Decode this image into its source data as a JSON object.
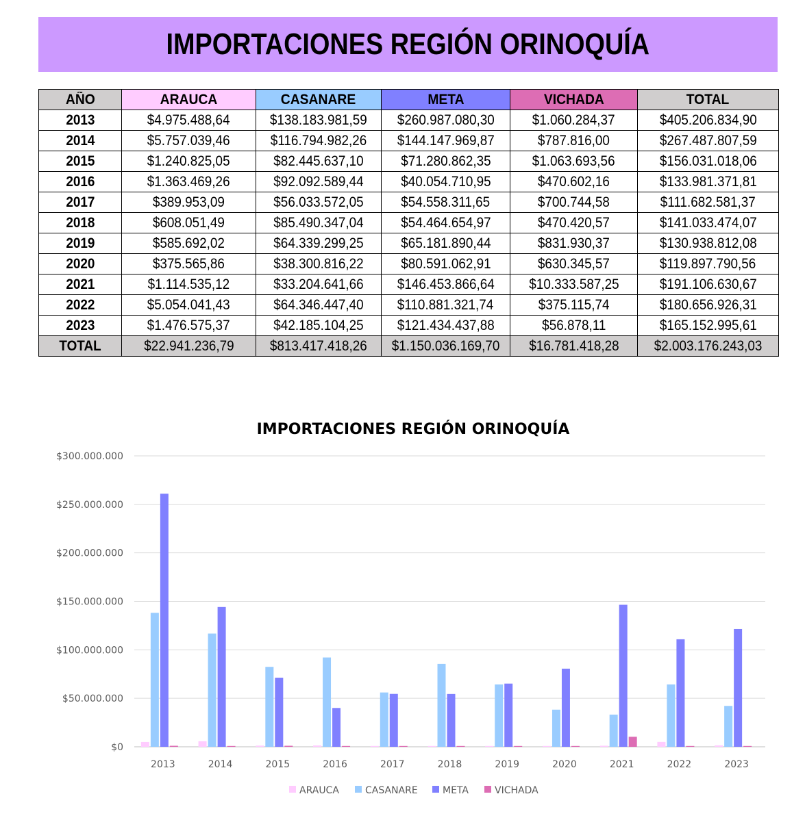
{
  "banner_title": "IMPORTACIONES REGIÓN ORINOQUÍA",
  "colors": {
    "banner": "#cc99ff",
    "arauca": "#ffccff",
    "casanare": "#99ccff",
    "meta": "#8080ff",
    "vichada": "#dd6db4",
    "grey": "#d0cece"
  },
  "table": {
    "headers": [
      "AÑO",
      "ARAUCA",
      "CASANARE",
      "META",
      "VICHADA",
      "TOTAL"
    ],
    "rows": [
      [
        "2013",
        "$4.975.488,64",
        "$138.183.981,59",
        "$260.987.080,30",
        "$1.060.284,37",
        "$405.206.834,90"
      ],
      [
        "2014",
        "$5.757.039,46",
        "$116.794.982,26",
        "$144.147.969,87",
        "$787.816,00",
        "$267.487.807,59"
      ],
      [
        "2015",
        "$1.240.825,05",
        "$82.445.637,10",
        "$71.280.862,35",
        "$1.063.693,56",
        "$156.031.018,06"
      ],
      [
        "2016",
        "$1.363.469,26",
        "$92.092.589,44",
        "$40.054.710,95",
        "$470.602,16",
        "$133.981.371,81"
      ],
      [
        "2017",
        "$389.953,09",
        "$56.033.572,05",
        "$54.558.311,65",
        "$700.744,58",
        "$111.682.581,37"
      ],
      [
        "2018",
        "$608.051,49",
        "$85.490.347,04",
        "$54.464.654,97",
        "$470.420,57",
        "$141.033.474,07"
      ],
      [
        "2019",
        "$585.692,02",
        "$64.339.299,25",
        "$65.181.890,44",
        "$831.930,37",
        "$130.938.812,08"
      ],
      [
        "2020",
        "$375.565,86",
        "$38.300.816,22",
        "$80.591.062,91",
        "$630.345,57",
        "$119.897.790,56"
      ],
      [
        "2021",
        "$1.114.535,12",
        "$33.204.641,66",
        "$146.453.866,64",
        "$10.333.587,25",
        "$191.106.630,67"
      ],
      [
        "2022",
        "$5.054.041,43",
        "$64.346.447,40",
        "$110.881.321,74",
        "$375.115,74",
        "$180.656.926,31"
      ],
      [
        "2023",
        "$1.476.575,37",
        "$42.185.104,25",
        "$121.434.437,88",
        "$56.878,11",
        "$165.152.995,61"
      ]
    ],
    "total": [
      "TOTAL",
      "$22.941.236,79",
      "$813.417.418,26",
      "$1.150.036.169,70",
      "$16.781.418,28",
      "$2.003.176.243,03"
    ]
  },
  "chart_data": {
    "type": "bar",
    "title": "IMPORTACIONES REGIÓN ORINOQUÍA",
    "xlabel": "",
    "ylabel": "",
    "categories": [
      "2013",
      "2014",
      "2015",
      "2016",
      "2017",
      "2018",
      "2019",
      "2020",
      "2021",
      "2022",
      "2023"
    ],
    "series": [
      {
        "name": "ARAUCA",
        "color": "#ffccff",
        "values": [
          4975488.64,
          5757039.46,
          1240825.05,
          1363469.26,
          389953.09,
          608051.49,
          585692.02,
          375565.86,
          1114535.12,
          5054041.43,
          1476575.37
        ]
      },
      {
        "name": "CASANARE",
        "color": "#99ccff",
        "values": [
          138183981.59,
          116794982.26,
          82445637.1,
          92092589.44,
          56033572.05,
          85490347.04,
          64339299.25,
          38300816.22,
          33204641.66,
          64346447.4,
          42185104.25
        ]
      },
      {
        "name": "META",
        "color": "#8080ff",
        "values": [
          260987080.3,
          144147969.87,
          71280862.35,
          40054710.95,
          54558311.65,
          54464654.97,
          65181890.44,
          80591062.91,
          146453866.64,
          110881321.74,
          121434437.88
        ]
      },
      {
        "name": "VICHADA",
        "color": "#dd6db4",
        "values": [
          1060284.37,
          787816.0,
          1063693.56,
          470602.16,
          700744.58,
          470420.57,
          831930.37,
          630345.57,
          10333587.25,
          375115.74,
          56878.11
        ]
      }
    ],
    "ylim": [
      0,
      300000000
    ],
    "yticks": [
      {
        "value": 0,
        "label": "$0"
      },
      {
        "value": 50000000,
        "label": "$50.000.000"
      },
      {
        "value": 100000000,
        "label": "$100.000.000"
      },
      {
        "value": 150000000,
        "label": "$150.000.000"
      },
      {
        "value": 200000000,
        "label": "$200.000.000"
      },
      {
        "value": 250000000,
        "label": "$250.000.000"
      },
      {
        "value": 300000000,
        "label": "$300.000.000"
      }
    ],
    "grid": true,
    "legend": "bottom"
  }
}
